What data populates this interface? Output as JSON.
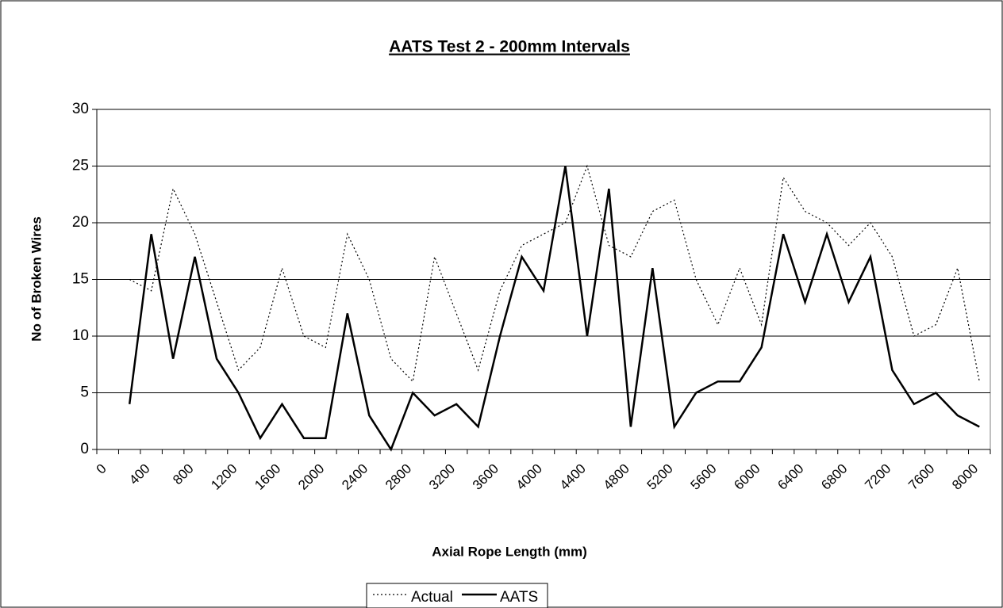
{
  "chart_data": {
    "type": "line",
    "title": "AATS Test 2 - 200mm Intervals",
    "x_label": "Axial Rope Length (mm)",
    "y_label": "No of Broken Wires",
    "categories": [
      "0",
      null,
      "400",
      null,
      "800",
      null,
      "1200",
      null,
      "1600",
      null,
      "2000",
      null,
      "2400",
      null,
      "2800",
      null,
      "3200",
      null,
      "3600",
      null,
      "4000",
      null,
      "4400",
      null,
      "4800",
      null,
      "5200",
      null,
      "5600",
      null,
      "6000",
      null,
      "6400",
      null,
      "6800",
      null,
      "7200",
      null,
      "7600",
      null,
      "8000"
    ],
    "series": [
      {
        "name": "Actual",
        "color": "#000000",
        "dash": "dotted",
        "values": [
          null,
          15,
          14,
          23,
          19,
          13,
          7,
          9,
          16,
          10,
          9,
          19,
          15,
          8,
          6,
          17,
          12,
          7,
          14,
          18,
          19,
          20,
          25,
          18,
          17,
          21,
          22,
          15,
          11,
          16,
          11,
          24,
          21,
          20,
          18,
          20,
          17,
          10,
          11,
          16,
          6
        ]
      },
      {
        "name": "AATS",
        "color": "#000000",
        "dash": "solid",
        "values": [
          null,
          4,
          19,
          8,
          17,
          8,
          5,
          1,
          4,
          1,
          1,
          12,
          3,
          0,
          5,
          3,
          4,
          2,
          10,
          17,
          14,
          25,
          10,
          23,
          2,
          16,
          2,
          5,
          6,
          6,
          9,
          19,
          13,
          19,
          13,
          17,
          7,
          4,
          5,
          3,
          2
        ]
      }
    ],
    "ylim": [
      0,
      30
    ],
    "yticks": [
      0,
      5,
      10,
      15,
      20,
      25,
      30
    ],
    "grid": true,
    "legend": "bottom"
  }
}
